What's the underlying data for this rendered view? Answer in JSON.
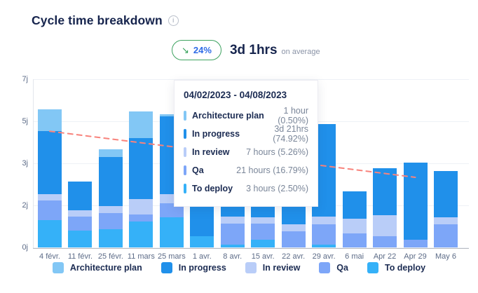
{
  "header": {
    "title": "Cycle time breakdown",
    "info_icon": "i",
    "badge": {
      "arrow": "↘",
      "percent": "24%"
    },
    "average": {
      "value": "3d 1hrs",
      "suffix": "on average"
    }
  },
  "tooltip": {
    "title": "04/02/2023 - 04/08/2023",
    "rows": [
      {
        "label": "Architecture plan",
        "value": "1 hour (0.50%)",
        "color": "#82c7f5"
      },
      {
        "label": "In progress",
        "value": "3d 21hrs (74.92%)",
        "color": "#2090ea"
      },
      {
        "label": "In review",
        "value": "7 hours (5.26%)",
        "color": "#b9cdf8"
      },
      {
        "label": "Qa",
        "value": "21 hours (16.79%)",
        "color": "#7da6f8"
      },
      {
        "label": "To deploy",
        "value": "3 hours (2.50%)",
        "color": "#35b1f8"
      }
    ]
  },
  "chart_data": {
    "type": "bar",
    "stacked": true,
    "title": "Cycle time breakdown",
    "unit": "hours",
    "ylim": [
      0,
      168
    ],
    "grid": true,
    "legend_position": "bottom",
    "y_ticks": [
      {
        "label": "7j",
        "hours": 168
      },
      {
        "label": "5j",
        "hours": 126
      },
      {
        "label": "3j",
        "hours": 84
      },
      {
        "label": "2j",
        "hours": 42
      },
      {
        "label": "0j",
        "hours": 0
      }
    ],
    "categories": [
      "4 févr.",
      "11 févr.",
      "25 févr.",
      "11 mars",
      "25 mars",
      "1 avr.",
      "8 avr.",
      "15 avr.",
      "22 avr.",
      "29 avr.",
      "6 mai",
      "Apr 22",
      "Apr 29",
      "May 6"
    ],
    "series": [
      {
        "name": "Architecture plan",
        "color": "#82c7f5",
        "values": [
          22,
          0,
          8,
          27,
          2,
          0,
          1,
          0,
          0,
          0,
          0,
          0,
          0,
          0
        ]
      },
      {
        "name": "In progress",
        "color": "#2090ea",
        "values": [
          63,
          29,
          49,
          61,
          78,
          59,
          93,
          56,
          53,
          92,
          27,
          47,
          77,
          46
        ]
      },
      {
        "name": "In review",
        "color": "#b9cdf8",
        "values": [
          6,
          6,
          7,
          15,
          9,
          0,
          7,
          6,
          7,
          8,
          15,
          21,
          0,
          7
        ]
      },
      {
        "name": "Qa",
        "color": "#7da6f8",
        "values": [
          20,
          14,
          16,
          7,
          14,
          0,
          21,
          16,
          16,
          20,
          14,
          11,
          8,
          23
        ]
      },
      {
        "name": "To deploy",
        "color": "#35b1f8",
        "values": [
          27,
          17,
          18,
          26,
          30,
          11,
          3,
          8,
          0,
          3,
          0,
          0,
          0,
          0
        ]
      }
    ],
    "trend_line": {
      "color": "#f8837c",
      "style": "dashed",
      "from": {
        "category_index": 0,
        "hours": 116
      },
      "to": {
        "category_index": 12,
        "hours": 70
      }
    }
  },
  "legend": {
    "items": [
      {
        "label": "Architecture plan",
        "color": "#82c7f5"
      },
      {
        "label": "In progress",
        "color": "#2090ea"
      },
      {
        "label": "In review",
        "color": "#b9cdf8"
      },
      {
        "label": "Qa",
        "color": "#7da6f8"
      },
      {
        "label": "To deploy",
        "color": "#35b1f8"
      }
    ]
  }
}
